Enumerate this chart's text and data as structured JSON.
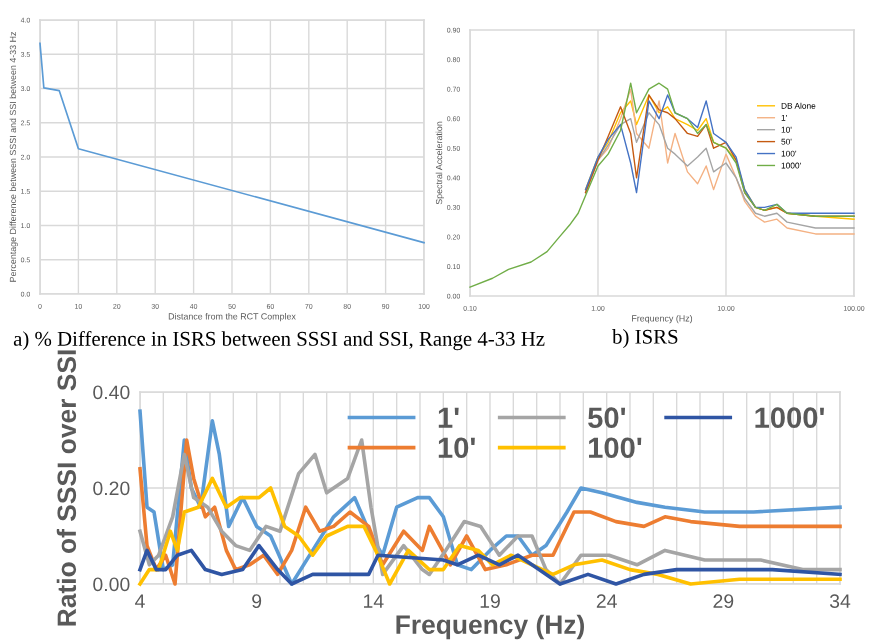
{
  "chart_data": [
    {
      "type": "line",
      "xlabel": "Distance from the RCT Complex",
      "ylabel": "Percentage Difference between SSSI and SSI between 4-33 Hz",
      "annotations": [
        "a) % Difference in ISRS between SSSI and SSI, Range 4-33 Hz"
      ],
      "series": [
        {
          "color": "#5b9bd5",
          "x": [
            0,
            1,
            5,
            10,
            100
          ],
          "values": [
            3.66,
            3.01,
            2.97,
            2.12,
            0.75
          ]
        }
      ],
      "xlim": [
        0,
        100
      ],
      "xticks": [
        0,
        10,
        20,
        30,
        40,
        50,
        60,
        70,
        80,
        90,
        100
      ],
      "ylim": [
        0,
        4
      ],
      "yticks": [
        {
          "value": 0,
          "label": "0.0"
        },
        {
          "value": 0.5,
          "label": "0.5"
        },
        {
          "value": 1,
          "label": "1.0"
        },
        {
          "value": 1.5,
          "label": "1.5"
        },
        {
          "value": 2,
          "label": "2.0"
        },
        {
          "value": 2.5,
          "label": "2.5"
        },
        {
          "value": 3,
          "label": "3.0"
        },
        {
          "value": 3.5,
          "label": "3.5"
        },
        {
          "value": 4,
          "label": "4.0"
        }
      ],
      "grid": true
    },
    {
      "type": "line",
      "xlabel": "Frequency (Hz)",
      "ylabel": "Spectral Acceleration",
      "annotations": [
        "b) ISRS"
      ],
      "log": "x",
      "legend": "right",
      "x": [
        0.1,
        0.15,
        0.2,
        0.3,
        0.4,
        0.5,
        0.6,
        0.7,
        0.8,
        1.0,
        1.2,
        1.5,
        1.8,
        2.0,
        2.5,
        3.0,
        3.5,
        4.0,
        5.0,
        6.0,
        7.0,
        8.0,
        10,
        12,
        14,
        17,
        20,
        25,
        30,
        50,
        100
      ],
      "series": [
        {
          "name": "DB Alone",
          "color": "#ffc000",
          "values": [
            null,
            null,
            null,
            null,
            null,
            null,
            null,
            null,
            0.36,
            0.47,
            0.52,
            0.62,
            0.66,
            0.58,
            0.68,
            0.62,
            0.64,
            0.6,
            0.58,
            0.56,
            0.6,
            0.52,
            0.5,
            0.46,
            0.36,
            0.3,
            0.29,
            0.3,
            0.28,
            0.27,
            0.26
          ]
        },
        {
          "name": "1'",
          "color": "#f4b183",
          "values": [
            null,
            null,
            null,
            null,
            null,
            null,
            null,
            null,
            0.35,
            0.46,
            0.5,
            0.6,
            0.7,
            0.55,
            0.5,
            0.66,
            0.45,
            0.55,
            0.42,
            0.38,
            0.44,
            0.36,
            0.48,
            0.4,
            0.32,
            0.27,
            0.25,
            0.26,
            0.23,
            0.21,
            0.21
          ]
        },
        {
          "name": "10'",
          "color": "#a5a5a5",
          "values": [
            null,
            null,
            null,
            null,
            null,
            null,
            null,
            null,
            0.35,
            0.46,
            0.51,
            0.58,
            0.6,
            0.52,
            0.62,
            0.58,
            0.5,
            0.48,
            0.44,
            0.47,
            0.5,
            0.42,
            0.45,
            0.4,
            0.33,
            0.28,
            0.27,
            0.28,
            0.25,
            0.23,
            0.23
          ]
        },
        {
          "name": "50'",
          "color": "#c55a11",
          "values": [
            null,
            null,
            null,
            null,
            null,
            null,
            null,
            null,
            0.35,
            0.46,
            0.54,
            0.64,
            0.55,
            0.4,
            0.68,
            0.63,
            0.62,
            0.6,
            0.55,
            0.54,
            0.58,
            0.5,
            0.52,
            0.46,
            0.35,
            0.3,
            0.29,
            0.3,
            0.28,
            0.27,
            0.27
          ]
        },
        {
          "name": "100'",
          "color": "#4472c4",
          "values": [
            null,
            null,
            null,
            null,
            null,
            null,
            null,
            null,
            0.36,
            0.47,
            0.53,
            0.58,
            0.45,
            0.35,
            0.66,
            0.6,
            0.68,
            0.62,
            0.6,
            0.57,
            0.66,
            0.55,
            0.52,
            0.47,
            0.36,
            0.3,
            0.3,
            0.31,
            0.28,
            0.28,
            0.28
          ]
        },
        {
          "name": "1000'",
          "color": "#70ad47",
          "values": [
            0.03,
            0.06,
            0.09,
            0.115,
            0.15,
            0.2,
            0.24,
            0.28,
            0.34,
            0.44,
            0.48,
            0.56,
            0.72,
            0.62,
            0.7,
            0.72,
            0.7,
            0.62,
            0.6,
            0.55,
            0.58,
            0.52,
            0.5,
            0.45,
            0.35,
            0.3,
            0.29,
            0.31,
            0.28,
            0.27,
            0.27
          ]
        }
      ],
      "xlim": [
        0.1,
        100
      ],
      "xticks": [
        {
          "value": 0.1,
          "label": "0.10"
        },
        {
          "value": 1,
          "label": "1.00"
        },
        {
          "value": 10,
          "label": "10.00"
        },
        {
          "value": 100,
          "label": "100.00"
        }
      ],
      "ylim": [
        0,
        0.9
      ],
      "yticks": [
        {
          "value": 0,
          "label": "0.00"
        },
        {
          "value": 0.1,
          "label": "0.10"
        },
        {
          "value": 0.2,
          "label": "0.20"
        },
        {
          "value": 0.3,
          "label": "0.30"
        },
        {
          "value": 0.4,
          "label": "0.40"
        },
        {
          "value": 0.5,
          "label": "0.50"
        },
        {
          "value": 0.6,
          "label": "0.60"
        },
        {
          "value": 0.7,
          "label": "0.70"
        },
        {
          "value": 0.8,
          "label": "0.80"
        },
        {
          "value": 0.9,
          "label": "0.90"
        }
      ],
      "grid": "x"
    },
    {
      "type": "line",
      "xlabel": "Frequency (Hz)",
      "ylabel": "Ratio of SSSI over SSI",
      "legend": "top right",
      "series": [
        {
          "name": "1'",
          "color": "#5b9bd5",
          "x": [
            4,
            4.3,
            4.6,
            5,
            5.4,
            5.9,
            6.2,
            6.6,
            7.1,
            7.4,
            7.8,
            8.4,
            9,
            9.6,
            10.5,
            11.4,
            12.3,
            13.2,
            13.9,
            14.4,
            15,
            15.9,
            16.4,
            17,
            17.6,
            18.2,
            19,
            19.7,
            20.2,
            20.8,
            21.4,
            22.3,
            22.9,
            23.8,
            25.3,
            26.5,
            28.2,
            30.3,
            34
          ],
          "values": [
            0.36,
            0.16,
            0.15,
            0.03,
            0.04,
            0.3,
            0.2,
            0.16,
            0.34,
            0.27,
            0.12,
            0.18,
            0.12,
            0.1,
            0.0,
            0.07,
            0.14,
            0.18,
            0.1,
            0.06,
            0.16,
            0.18,
            0.18,
            0.14,
            0.04,
            0.03,
            0.07,
            0.1,
            0.1,
            0.06,
            0.08,
            0.15,
            0.2,
            0.19,
            0.17,
            0.16,
            0.15,
            0.15,
            0.16
          ]
        },
        {
          "name": "10'",
          "color": "#ed7d31",
          "x": [
            4,
            4.3,
            4.7,
            5.1,
            5.5,
            6,
            6.3,
            6.8,
            7.2,
            7.7,
            8.1,
            8.7,
            9.3,
            9.9,
            10.5,
            11.1,
            11.7,
            12.3,
            13,
            13.8,
            14.4,
            15.3,
            16.1,
            16.4,
            17.3,
            18,
            18.8,
            19.7,
            20.8,
            21.7,
            22.6,
            23.3,
            24.4,
            25.6,
            26.5,
            27.6,
            29.7,
            34
          ],
          "values": [
            0.24,
            0.08,
            0.03,
            0.06,
            0.0,
            0.3,
            0.22,
            0.14,
            0.16,
            0.07,
            0.03,
            0.04,
            0.06,
            0.02,
            0.07,
            0.16,
            0.11,
            0.12,
            0.15,
            0.12,
            0.04,
            0.11,
            0.07,
            0.12,
            0.04,
            0.1,
            0.03,
            0.04,
            0.06,
            0.06,
            0.15,
            0.15,
            0.13,
            0.12,
            0.14,
            0.13,
            0.12,
            0.12
          ]
        },
        {
          "name": "50'",
          "color": "#a5a5a5",
          "x": [
            4,
            4.4,
            4.8,
            5.4,
            5.9,
            6.3,
            6.9,
            7.5,
            8.1,
            8.7,
            9.4,
            10,
            10.8,
            11.5,
            12,
            12.9,
            13.5,
            13.9,
            14.4,
            15.3,
            16.1,
            16.4,
            17.1,
            17.9,
            18.6,
            19.4,
            20.2,
            20.8,
            21.4,
            22,
            22.9,
            24.1,
            25.3,
            26.5,
            28.2,
            30.6,
            32.4,
            34
          ],
          "values": [
            0.11,
            0.04,
            0.06,
            0.14,
            0.27,
            0.18,
            0.16,
            0.11,
            0.08,
            0.07,
            0.12,
            0.11,
            0.23,
            0.27,
            0.19,
            0.22,
            0.3,
            0.16,
            0.02,
            0.08,
            0.03,
            0.02,
            0.07,
            0.13,
            0.12,
            0.06,
            0.1,
            0.1,
            0.03,
            0.0,
            0.06,
            0.06,
            0.04,
            0.07,
            0.05,
            0.05,
            0.03,
            0.03
          ]
        },
        {
          "name": "100'",
          "color": "#ffc000",
          "x": [
            4,
            4.4,
            4.8,
            5.3,
            5.6,
            5.9,
            6.5,
            7.1,
            7.7,
            8.3,
            8.7,
            9.1,
            9.6,
            10.2,
            10.8,
            11.4,
            12,
            12.9,
            13.6,
            14.1,
            14.7,
            15.5,
            16.4,
            17,
            17.7,
            18.5,
            19.1,
            19.9,
            20.8,
            21.7,
            22.6,
            23.8,
            25,
            26.2,
            27.6,
            29.7,
            32.1,
            34
          ],
          "values": [
            0.0,
            0.03,
            0.03,
            0.11,
            0.07,
            0.15,
            0.16,
            0.22,
            0.16,
            0.18,
            0.18,
            0.18,
            0.2,
            0.12,
            0.1,
            0.06,
            0.1,
            0.12,
            0.12,
            0.07,
            0.0,
            0.07,
            0.03,
            0.03,
            0.08,
            0.07,
            0.04,
            0.06,
            0.04,
            0.02,
            0.04,
            0.05,
            0.03,
            0.02,
            0.0,
            0.01,
            0.01,
            0.01
          ]
        },
        {
          "name": "1000'",
          "color": "#2f55a4",
          "x": [
            4,
            4.3,
            4.7,
            5.1,
            5.6,
            6.2,
            6.8,
            7.5,
            8.4,
            9.1,
            9.9,
            10.5,
            11.4,
            12.6,
            13.8,
            14.2,
            17,
            17.6,
            18.5,
            19.4,
            20.2,
            21.1,
            22,
            23.2,
            24.4,
            25.6,
            27,
            28.8,
            31.1,
            34
          ],
          "values": [
            0.03,
            0.07,
            0.03,
            0.03,
            0.06,
            0.07,
            0.03,
            0.02,
            0.03,
            0.08,
            0.03,
            0.0,
            0.02,
            0.02,
            0.02,
            0.06,
            0.05,
            0.04,
            0.06,
            0.04,
            0.06,
            0.03,
            0.0,
            0.02,
            0.0,
            0.02,
            0.03,
            0.03,
            0.03,
            0.02
          ]
        }
      ],
      "xlim": [
        4,
        34
      ],
      "xticks": [
        4,
        {
          "value": 5,
          "label": null
        },
        {
          "value": 6,
          "label": null
        },
        {
          "value": 7,
          "label": null
        },
        {
          "value": 8,
          "label": null
        },
        9,
        {
          "value": 10,
          "label": null
        },
        {
          "value": 11,
          "label": null
        },
        {
          "value": 12,
          "label": null
        },
        {
          "value": 13,
          "label": null
        },
        14,
        {
          "value": 15,
          "label": null
        },
        {
          "value": 16,
          "label": null
        },
        {
          "value": 17,
          "label": null
        },
        {
          "value": 18,
          "label": null
        },
        19,
        {
          "value": 20,
          "label": null
        },
        {
          "value": 21,
          "label": null
        },
        {
          "value": 22,
          "label": null
        },
        {
          "value": 23,
          "label": null
        },
        24,
        {
          "value": 25,
          "label": null
        },
        {
          "value": 26,
          "label": null
        },
        {
          "value": 27,
          "label": null
        },
        {
          "value": 28,
          "label": null
        },
        29,
        {
          "value": 30,
          "label": null
        },
        {
          "value": 31,
          "label": null
        },
        {
          "value": 32,
          "label": null
        },
        {
          "value": 33,
          "label": null
        },
        34
      ],
      "ylim": [
        0,
        0.4
      ],
      "yticks": [
        {
          "value": 0,
          "label": "0.00"
        },
        {
          "value": 0.2,
          "label": "0.20"
        },
        {
          "value": 0.4,
          "label": "0.40"
        }
      ],
      "grid": true
    }
  ]
}
